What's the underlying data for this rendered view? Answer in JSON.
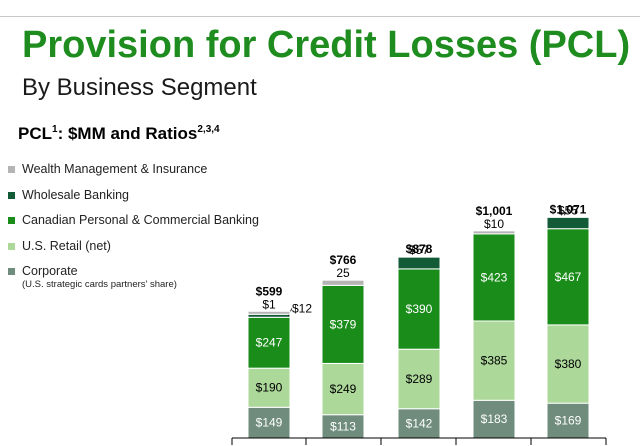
{
  "slide": {
    "title": "Provision for Credit Losses (PCL)",
    "subtitle": "By Business Segment"
  },
  "chart_heading": {
    "prefix": "PCL",
    "footnote_1": "1",
    "middle": ": $MM and Ratios",
    "footnote_2": "2,3,4"
  },
  "legend": [
    {
      "label": "Wealth Management & Insurance",
      "color": "#b4b4b4"
    },
    {
      "label": "Wholesale Banking",
      "color": "#135a36"
    },
    {
      "label": "Canadian Personal & Commercial Banking",
      "color": "#1a8c1a"
    },
    {
      "label": "U.S. Retail (net)",
      "color": "#acd89a"
    },
    {
      "label": "Corporate",
      "note": "(U.S. strategic cards partners' share)",
      "color": "#6f8c7c"
    }
  ],
  "chart_data": {
    "type": "bar",
    "stacked": true,
    "title": "PCL: $MM and Ratios",
    "categories": [
      "",
      "",
      "",
      "",
      ""
    ],
    "series": [
      {
        "name": "Corporate",
        "color": "#6f8c7c",
        "label_color": "#ffffff",
        "values": [
          149,
          113,
          142,
          183,
          169
        ],
        "labels": [
          "$149",
          "$113",
          "$142",
          "$183",
          "$169"
        ]
      },
      {
        "name": "U.S. Retail (net)",
        "color": "#acd89a",
        "label_color": "#000000",
        "values": [
          190,
          249,
          289,
          385,
          380
        ],
        "labels": [
          "$190",
          "$249",
          "$289",
          "$385",
          "$380"
        ]
      },
      {
        "name": "Canadian Personal & Commercial Banking",
        "color": "#1a8c1a",
        "label_color": "#ffffff",
        "values": [
          247,
          379,
          390,
          423,
          467
        ],
        "labels": [
          "$247",
          "$379",
          "$390",
          "$423",
          "$467"
        ]
      },
      {
        "name": "Wholesale Banking",
        "color": "#135a36",
        "label_color": "#ffffff",
        "values": [
          12,
          0,
          57,
          0,
          55
        ],
        "labels": [
          "$12",
          "",
          "$57",
          "",
          "$55"
        ]
      },
      {
        "name": "Wealth Management & Insurance",
        "color": "#b4b4b4",
        "label_color": "#000000",
        "values": [
          1,
          25,
          0,
          10,
          0
        ],
        "labels": [
          "$1",
          "25",
          "",
          "$10",
          ""
        ]
      }
    ],
    "totals": [
      "$599",
      "$766",
      "$878",
      "$1,001",
      "$1,071"
    ],
    "total_values": [
      599,
      766,
      878,
      1001,
      1071
    ],
    "grid": false,
    "legend_position": "left"
  }
}
